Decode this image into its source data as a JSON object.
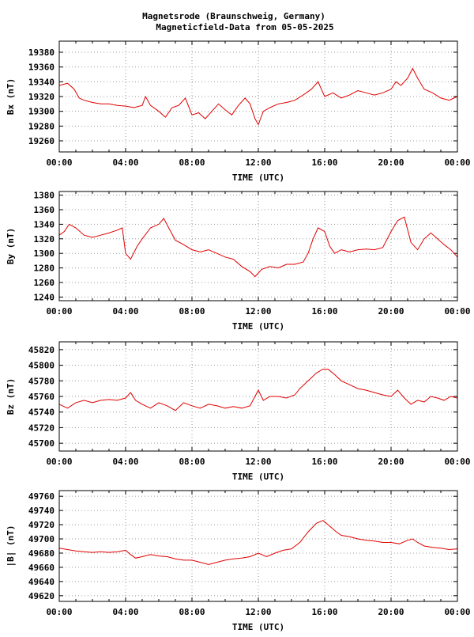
{
  "title_line1": "Magnetsrode (Braunschweig, Germany)",
  "title_line2": "Magneticfield-Data from 05-05-2025",
  "colors": {
    "trace": "#e00000",
    "grid": "#9a9a9a",
    "frame": "#000000"
  },
  "chart_data": [
    {
      "type": "line",
      "ylabel": "Bx (nT)",
      "xlabel": "TIME (UTC)",
      "xticks": [
        "00:00",
        "04:00",
        "08:00",
        "12:00",
        "16:00",
        "20:00",
        "00:00"
      ],
      "xlim": [
        0,
        24
      ],
      "yticks": [
        19260,
        19280,
        19300,
        19320,
        19340,
        19360,
        19380
      ],
      "ylim": [
        19245,
        19395
      ],
      "grid": true,
      "series": [
        {
          "x": [
            0,
            0.5,
            0.9,
            1.2,
            1.5,
            2,
            2.5,
            3,
            3.5,
            4,
            4.5,
            5,
            5.2,
            5.5,
            6,
            6.4,
            6.8,
            7.2,
            7.6,
            8,
            8.4,
            8.8,
            9.2,
            9.6,
            10,
            10.4,
            10.8,
            11.2,
            11.5,
            11.8,
            12,
            12.3,
            12.7,
            13.2,
            13.7,
            14.2,
            14.7,
            15.2,
            15.6,
            16,
            16.5,
            17,
            17.5,
            18,
            18.5,
            19,
            19.5,
            20,
            20.3,
            20.6,
            21,
            21.3,
            21.6,
            22,
            22.5,
            23,
            23.5,
            24
          ],
          "values": [
            19335,
            19338,
            19330,
            19318,
            19315,
            19312,
            19310,
            19310,
            19308,
            19307,
            19305,
            19308,
            19320,
            19308,
            19300,
            19292,
            19305,
            19308,
            19318,
            19295,
            19298,
            19290,
            19300,
            19310,
            19302,
            19295,
            19308,
            19318,
            19310,
            19290,
            19282,
            19300,
            19305,
            19310,
            19312,
            19315,
            19322,
            19330,
            19340,
            19320,
            19325,
            19318,
            19322,
            19328,
            19325,
            19322,
            19325,
            19330,
            19340,
            19335,
            19345,
            19358,
            19345,
            19330,
            19325,
            19318,
            19315,
            19320
          ]
        }
      ]
    },
    {
      "type": "line",
      "ylabel": "By (nT)",
      "xlabel": "TIME (UTC)",
      "xticks": [
        "00:00",
        "04:00",
        "08:00",
        "12:00",
        "16:00",
        "20:00",
        "00:00"
      ],
      "xlim": [
        0,
        24
      ],
      "yticks": [
        1240,
        1260,
        1280,
        1300,
        1320,
        1340,
        1360,
        1380
      ],
      "ylim": [
        1235,
        1385
      ],
      "grid": true,
      "series": [
        {
          "x": [
            0,
            0.3,
            0.6,
            1,
            1.5,
            2,
            2.5,
            3,
            3.5,
            3.8,
            4,
            4.3,
            4.7,
            5,
            5.5,
            6,
            6.3,
            6.6,
            7,
            7.5,
            8,
            8.5,
            9,
            9.5,
            10,
            10.5,
            11,
            11.5,
            11.8,
            12.2,
            12.7,
            13.2,
            13.7,
            14.2,
            14.7,
            15,
            15.3,
            15.6,
            16,
            16.3,
            16.6,
            17,
            17.5,
            18,
            18.5,
            19,
            19.5,
            20,
            20.4,
            20.8,
            21.2,
            21.6,
            22,
            22.4,
            22.8,
            23.2,
            23.6,
            24
          ],
          "values": [
            1325,
            1330,
            1340,
            1335,
            1325,
            1322,
            1325,
            1328,
            1332,
            1335,
            1300,
            1292,
            1310,
            1320,
            1335,
            1340,
            1348,
            1335,
            1318,
            1312,
            1305,
            1302,
            1305,
            1300,
            1295,
            1292,
            1282,
            1275,
            1268,
            1278,
            1282,
            1280,
            1285,
            1285,
            1288,
            1300,
            1320,
            1335,
            1330,
            1310,
            1300,
            1305,
            1302,
            1305,
            1306,
            1305,
            1308,
            1330,
            1345,
            1350,
            1315,
            1305,
            1320,
            1328,
            1320,
            1312,
            1305,
            1295
          ]
        }
      ]
    },
    {
      "type": "line",
      "ylabel": "Bz (nT)",
      "xlabel": "TIME (UTC)",
      "xticks": [
        "00:00",
        "04:00",
        "08:00",
        "12:00",
        "16:00",
        "20:00",
        "00:00"
      ],
      "xlim": [
        0,
        24
      ],
      "yticks": [
        45700,
        45720,
        45740,
        45760,
        45780,
        45800,
        45820
      ],
      "ylim": [
        45690,
        45830
      ],
      "grid": true,
      "series": [
        {
          "x": [
            0,
            0.5,
            1,
            1.5,
            2,
            2.5,
            3,
            3.5,
            4,
            4.3,
            4.6,
            5,
            5.5,
            6,
            6.5,
            7,
            7.5,
            8,
            8.5,
            9,
            9.5,
            10,
            10.5,
            11,
            11.5,
            11.8,
            12,
            12.3,
            12.7,
            13.2,
            13.7,
            14.2,
            14.5,
            15,
            15.5,
            15.9,
            16.2,
            16.6,
            17,
            17.5,
            18,
            18.5,
            19,
            19.5,
            20,
            20.4,
            20.8,
            21.2,
            21.6,
            22,
            22.4,
            22.8,
            23.2,
            23.6,
            24
          ],
          "values": [
            45750,
            45745,
            45752,
            45755,
            45752,
            45755,
            45756,
            45755,
            45758,
            45765,
            45755,
            45750,
            45745,
            45752,
            45748,
            45742,
            45752,
            45748,
            45745,
            45750,
            45748,
            45745,
            45747,
            45745,
            45748,
            45760,
            45768,
            45755,
            45760,
            45760,
            45758,
            45762,
            45770,
            45780,
            45790,
            45795,
            45795,
            45788,
            45780,
            45775,
            45770,
            45768,
            45765,
            45762,
            45760,
            45768,
            45758,
            45750,
            45755,
            45753,
            45760,
            45758,
            45755,
            45760,
            45758
          ]
        }
      ]
    },
    {
      "type": "line",
      "ylabel": "|B| (nT)",
      "xlabel": "TIME (UTC)",
      "xticks": [
        "00:00",
        "04:00",
        "08:00",
        "12:00",
        "16:00",
        "20:00",
        "00:00"
      ],
      "xlim": [
        0,
        24
      ],
      "yticks": [
        49620,
        49640,
        49660,
        49680,
        49700,
        49720,
        49740,
        49760
      ],
      "ylim": [
        49612,
        49768
      ],
      "grid": true,
      "series": [
        {
          "x": [
            0,
            0.5,
            1,
            1.5,
            2,
            2.5,
            3,
            3.5,
            4,
            4.3,
            4.6,
            5,
            5.5,
            6,
            6.5,
            7,
            7.5,
            8,
            8.5,
            9,
            9.5,
            10,
            10.5,
            11,
            11.5,
            12,
            12.5,
            13,
            13.5,
            14,
            14.5,
            15,
            15.5,
            15.9,
            16.3,
            16.7,
            17,
            17.5,
            18,
            18.5,
            19,
            19.5,
            20,
            20.5,
            21,
            21.3,
            21.6,
            22,
            22.5,
            23,
            23.5,
            24
          ],
          "values": [
            49687,
            49685,
            49683,
            49682,
            49681,
            49682,
            49681,
            49682,
            49684,
            49678,
            49673,
            49675,
            49678,
            49676,
            49675,
            49672,
            49670,
            49670,
            49667,
            49664,
            49667,
            49670,
            49672,
            49673,
            49675,
            49680,
            49675,
            49680,
            49684,
            49686,
            49695,
            49710,
            49722,
            49726,
            49718,
            49710,
            49705,
            49703,
            49700,
            49698,
            49697,
            49695,
            49695,
            49693,
            49698,
            49700,
            49695,
            49690,
            49688,
            49687,
            49685,
            49686
          ]
        }
      ]
    }
  ]
}
